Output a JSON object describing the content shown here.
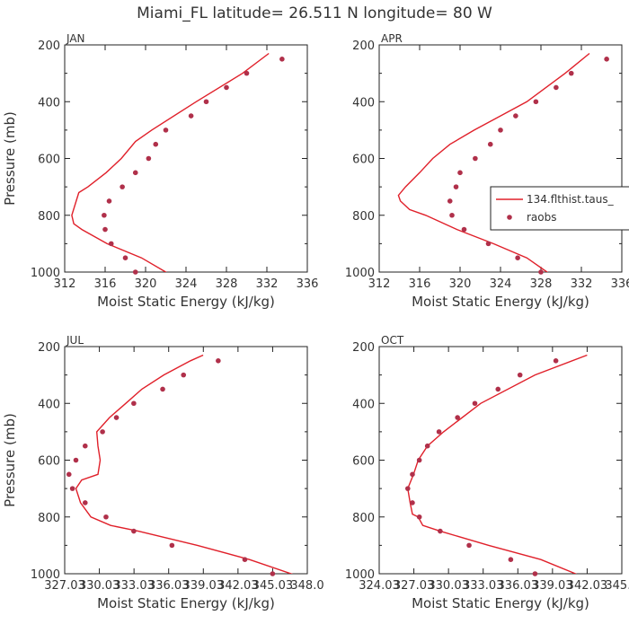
{
  "figure_title": "Miami_FL   latitude= 26.511 N longitude= 80 W",
  "colors": {
    "model": "#e0202a",
    "raobs": "#b0304a",
    "axis": "#222222",
    "text": "#333333"
  },
  "legend": {
    "panel": "APR",
    "placement": "right-middle",
    "model_label": "134.flthist.taus_",
    "raobs_label": "raobs"
  },
  "chart_data": [
    {
      "type": "line+scatter",
      "panel": "JAN",
      "xlabel": "Moist Static Energy (kJ/kg)",
      "ylabel": "Pressure (mb)",
      "xlim": [
        312,
        336
      ],
      "ylim": [
        1000,
        200
      ],
      "xticks": [
        "312",
        "316",
        "320",
        "324",
        "328",
        "332",
        "336"
      ],
      "yticks": [
        "200",
        "400",
        "600",
        "800",
        "1000"
      ],
      "model": {
        "name": "134.flthist.taus_",
        "pressure": [
          230,
          300,
          400,
          500,
          540,
          600,
          650,
          700,
          720,
          800,
          830,
          850,
          900,
          950,
          1000,
          1015
        ],
        "mse": [
          332.2,
          329.6,
          325.0,
          320.6,
          319.0,
          317.6,
          316.1,
          314.3,
          313.4,
          312.7,
          312.9,
          313.7,
          316.2,
          319.6,
          322.0,
          322.6
        ]
      },
      "raobs": {
        "name": "raobs",
        "pressure": [
          250,
          300,
          350,
          400,
          450,
          500,
          550,
          600,
          650,
          700,
          750,
          800,
          850,
          900,
          950,
          1000
        ],
        "mse": [
          333.5,
          330.0,
          328.0,
          326.0,
          324.5,
          322.0,
          321.0,
          320.3,
          319.0,
          317.7,
          316.4,
          315.9,
          316.0,
          316.6,
          318.0,
          319.0
        ]
      }
    },
    {
      "type": "line+scatter",
      "panel": "APR",
      "xlabel": "Moist Static Energy (kJ/kg)",
      "ylabel": "",
      "xlim": [
        312,
        336
      ],
      "ylim": [
        1000,
        200
      ],
      "xticks": [
        "312",
        "316",
        "320",
        "324",
        "328",
        "332",
        "336"
      ],
      "yticks": [
        "200",
        "400",
        "600",
        "800",
        "1000"
      ],
      "model": {
        "name": "134.flthist.taus_",
        "pressure": [
          230,
          300,
          400,
          500,
          550,
          600,
          650,
          700,
          730,
          750,
          780,
          800,
          850,
          900,
          950,
          1000,
          1015
        ],
        "mse": [
          332.8,
          330.4,
          326.6,
          321.4,
          319.0,
          317.3,
          316.0,
          314.6,
          313.9,
          314.1,
          315.0,
          316.6,
          319.7,
          323.3,
          326.6,
          328.6,
          329.2
        ]
      },
      "raobs": {
        "name": "raobs",
        "pressure": [
          250,
          300,
          350,
          400,
          450,
          500,
          550,
          600,
          650,
          700,
          750,
          800,
          850,
          900,
          950,
          1000
        ],
        "mse": [
          334.5,
          331.0,
          329.5,
          327.5,
          325.5,
          324.0,
          323.0,
          321.5,
          320.0,
          319.6,
          319.0,
          319.2,
          320.4,
          322.8,
          325.7,
          328.0
        ]
      }
    },
    {
      "type": "line+scatter",
      "panel": "JUL",
      "xlabel": "Moist Static Energy (kJ/kg)",
      "ylabel": "Pressure (mb)",
      "xlim": [
        327.03,
        348.0
      ],
      "ylim": [
        1000,
        200
      ],
      "xticks": [
        "327.03",
        "330.03",
        "333.03",
        "336.03",
        "339.03",
        "342.03",
        "345.03",
        "348.0"
      ],
      "yticks": [
        "200",
        "400",
        "600",
        "800",
        "1000"
      ],
      "model": {
        "name": "134.flthist.taus_",
        "pressure": [
          230,
          250,
          300,
          350,
          400,
          450,
          500,
          550,
          600,
          650,
          670,
          700,
          750,
          800,
          830,
          850,
          900,
          950,
          1000,
          1015
        ],
        "mse": [
          339.0,
          337.9,
          335.6,
          333.7,
          332.3,
          330.9,
          329.8,
          329.9,
          330.1,
          329.9,
          328.5,
          328.0,
          328.4,
          329.3,
          331.0,
          333.4,
          338.5,
          343.0,
          346.6,
          347.7
        ]
      },
      "raobs": {
        "name": "raobs",
        "pressure": [
          250,
          300,
          350,
          400,
          450,
          500,
          550,
          600,
          650,
          700,
          750,
          800,
          850,
          900,
          950,
          1000
        ],
        "mse": [
          340.3,
          337.3,
          335.5,
          333.0,
          331.5,
          330.3,
          328.8,
          328.0,
          327.4,
          327.7,
          328.8,
          330.6,
          333.0,
          336.3,
          342.6,
          345.0
        ]
      }
    },
    {
      "type": "line+scatter",
      "panel": "OCT",
      "xlabel": "Moist Static Energy (kJ/kg)",
      "ylabel": "",
      "xlim": [
        324.03,
        345.0
      ],
      "ylim": [
        1000,
        200
      ],
      "xticks": [
        "324.03",
        "327.03",
        "330.03",
        "333.03",
        "336.03",
        "339.03",
        "342.03",
        "345.0"
      ],
      "yticks": [
        "200",
        "400",
        "600",
        "800",
        "1000"
      ],
      "model": {
        "name": "134.flthist.taus_",
        "pressure": [
          230,
          300,
          400,
          500,
          550,
          600,
          650,
          700,
          750,
          790,
          800,
          830,
          850,
          900,
          950,
          1000,
          1015
        ],
        "mse": [
          342.0,
          337.5,
          332.8,
          329.6,
          328.2,
          327.4,
          327.0,
          326.5,
          326.7,
          326.9,
          327.4,
          327.8,
          329.3,
          333.5,
          338.0,
          341.0,
          341.7
        ]
      },
      "raobs": {
        "name": "raobs",
        "pressure": [
          250,
          300,
          350,
          400,
          450,
          500,
          550,
          600,
          650,
          700,
          750,
          800,
          850,
          900,
          950,
          1000
        ],
        "mse": [
          339.3,
          336.2,
          334.3,
          332.3,
          330.8,
          329.2,
          328.2,
          327.5,
          326.9,
          326.5,
          326.9,
          327.5,
          329.3,
          331.8,
          335.4,
          337.5
        ]
      }
    }
  ]
}
